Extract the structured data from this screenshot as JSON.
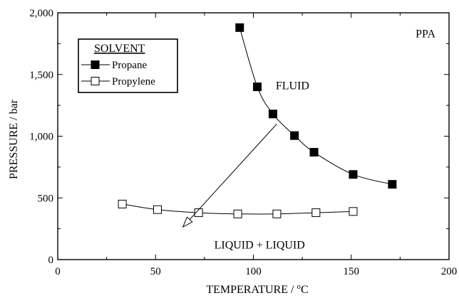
{
  "chart_data": {
    "type": "scatter",
    "title": "",
    "xlabel": "TEMPERATURE / °C",
    "ylabel": "PRESSURE / bar",
    "xlim": [
      0,
      200
    ],
    "ylim": [
      0,
      2000
    ],
    "x_ticks": [
      0,
      50,
      100,
      150,
      200
    ],
    "y_ticks": [
      0,
      500,
      1000,
      1500,
      2000
    ],
    "x_tick_labels": [
      "0",
      "50",
      "100",
      "150",
      "200"
    ],
    "y_tick_labels": [
      "0",
      "500",
      "1,000",
      "1,500",
      "2,000"
    ],
    "grid": false,
    "legend": {
      "title": "SOLVENT",
      "position": "top-left"
    },
    "series": [
      {
        "name": "Propane",
        "marker": "filled-square",
        "color": "#000000",
        "x": [
          93,
          102,
          110,
          121,
          131,
          151,
          171
        ],
        "y": [
          1880,
          1400,
          1180,
          1005,
          870,
          690,
          610
        ]
      },
      {
        "name": "Propylene",
        "marker": "open-square",
        "color": "#000000",
        "x": [
          33,
          51,
          72,
          92,
          112,
          132,
          151
        ],
        "y": [
          450,
          405,
          380,
          370,
          370,
          380,
          390
        ]
      }
    ],
    "annotations": [
      {
        "text": "PPA",
        "x": 188,
        "y": 1800
      },
      {
        "text": "FLUID",
        "x": 120,
        "y": 1380
      },
      {
        "text": "LIQUID + LIQUID",
        "x": 80,
        "y": 90
      }
    ],
    "arrow": {
      "from": [
        112,
        1100
      ],
      "to": [
        64,
        265
      ]
    }
  }
}
